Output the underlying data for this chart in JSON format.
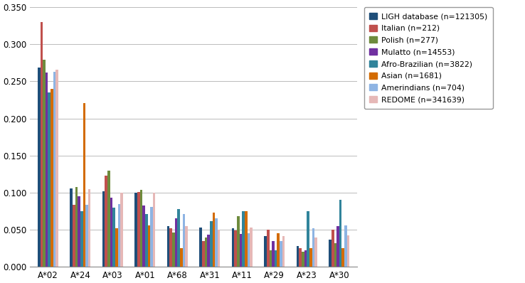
{
  "categories": [
    "A*02",
    "A*24",
    "A*03",
    "A*01",
    "A*68",
    "A*31",
    "A*11",
    "A*29",
    "A*23",
    "A*30"
  ],
  "series": [
    {
      "label": "LIGH database (n=121305)",
      "color": "#1F4E79",
      "values": [
        0.269,
        0.106,
        0.102,
        0.1,
        0.055,
        0.053,
        0.052,
        0.041,
        0.028,
        0.037
      ]
    },
    {
      "label": "Italian (n=212)",
      "color": "#C0504D",
      "values": [
        0.33,
        0.084,
        0.123,
        0.101,
        0.052,
        0.035,
        0.049,
        0.05,
        0.025,
        0.05
      ]
    },
    {
      "label": "Polish (n=277)",
      "color": "#6E8B3D",
      "values": [
        0.279,
        0.108,
        0.13,
        0.104,
        0.046,
        0.04,
        0.068,
        0.022,
        0.02,
        0.032
      ]
    },
    {
      "label": "Mulatto (n=14553)",
      "color": "#7030A0",
      "values": [
        0.262,
        0.095,
        0.093,
        0.083,
        0.065,
        0.043,
        0.044,
        0.035,
        0.022,
        0.055
      ]
    },
    {
      "label": "Afro-Brazilian (n=3822)",
      "color": "#31849B",
      "values": [
        0.235,
        0.075,
        0.08,
        0.071,
        0.078,
        0.062,
        0.075,
        0.022,
        0.075,
        0.09
      ]
    },
    {
      "label": "Asian (n=1681)",
      "color": "#D36B00",
      "values": [
        0.24,
        0.221,
        0.052,
        0.056,
        0.025,
        0.073,
        0.075,
        0.045,
        0.025,
        0.025
      ]
    },
    {
      "label": "Amerindians (n=704)",
      "color": "#8EB4E3",
      "values": [
        0.263,
        0.084,
        0.085,
        0.081,
        0.071,
        0.065,
        0.045,
        0.035,
        0.052,
        0.056
      ]
    },
    {
      "label": "REDOME (n=341639)",
      "color": "#E6B8B7",
      "values": [
        0.266,
        0.105,
        0.1,
        0.1,
        0.055,
        0.05,
        0.053,
        0.041,
        0.04,
        0.042
      ]
    }
  ],
  "ylim": [
    0.0,
    0.355
  ],
  "yticks": [
    0.0,
    0.05,
    0.1,
    0.15,
    0.2,
    0.25,
    0.3,
    0.35
  ],
  "background_color": "#FFFFFF",
  "grid_color": "#BBBBBB",
  "bar_width": 0.08,
  "figsize": [
    7.38,
    3.98
  ],
  "legend_fontsize": 7.8,
  "tick_fontsize": 8.5
}
